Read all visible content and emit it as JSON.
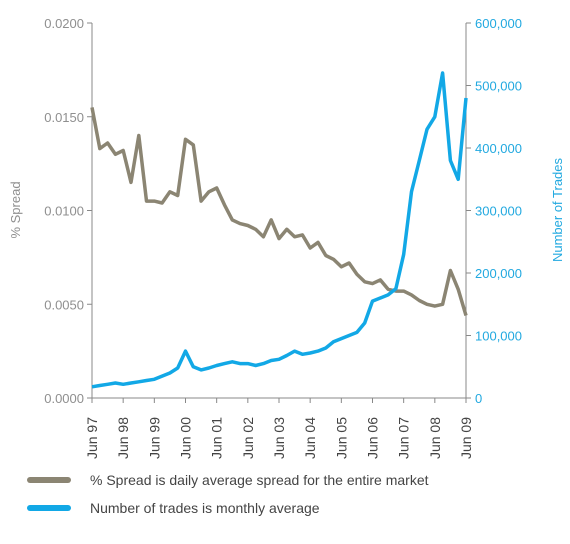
{
  "chart_data": {
    "type": "line",
    "categories": [
      "Jun 97",
      null,
      null,
      null,
      "Jun 98",
      null,
      null,
      null,
      "Jun 99",
      null,
      null,
      null,
      "Jun 00",
      null,
      null,
      null,
      "Jun 01",
      null,
      null,
      null,
      "Jun 02",
      null,
      null,
      null,
      "Jun 03",
      null,
      null,
      null,
      "Jun 04",
      null,
      null,
      null,
      "Jun 05",
      null,
      null,
      null,
      "Jun 06",
      null,
      null,
      null,
      "Jun 07",
      null,
      null,
      null,
      "Jun 08",
      null,
      null,
      null,
      "Jun 09"
    ],
    "series": [
      {
        "name": "% Spread is daily average spread for the entire market",
        "color": "#8b8573",
        "axis": "y",
        "values": [
          0.0155,
          0.0133,
          0.0136,
          0.013,
          0.0132,
          0.0115,
          0.014,
          0.0105,
          0.0105,
          0.0104,
          0.011,
          0.0108,
          0.0138,
          0.0135,
          0.0105,
          0.011,
          0.0112,
          0.0103,
          0.0095,
          0.0093,
          0.0092,
          0.009,
          0.0086,
          0.0095,
          0.0085,
          0.009,
          0.0086,
          0.0087,
          0.008,
          0.0083,
          0.0076,
          0.0074,
          0.007,
          0.0072,
          0.0066,
          0.0062,
          0.0061,
          0.0063,
          0.0058,
          0.0057,
          0.0057,
          0.0055,
          0.0052,
          0.005,
          0.0049,
          0.005,
          0.0068,
          0.0058,
          0.0044
        ]
      },
      {
        "name": "Number of trades is monthly average",
        "color": "#12a8e6",
        "axis": "y2",
        "values": [
          18000,
          20000,
          22000,
          24000,
          22000,
          24000,
          26000,
          28000,
          30000,
          35000,
          40000,
          48000,
          75000,
          50000,
          45000,
          48000,
          52000,
          55000,
          58000,
          55000,
          55000,
          52000,
          55000,
          60000,
          62000,
          68000,
          75000,
          70000,
          72000,
          75000,
          80000,
          90000,
          95000,
          100000,
          105000,
          120000,
          155000,
          160000,
          165000,
          175000,
          230000,
          330000,
          380000,
          430000,
          450000,
          520000,
          380000,
          350000,
          480000
        ]
      }
    ],
    "y_label": "% Spread",
    "y2_label": "Number of Trades",
    "ylim": [
      0,
      0.02
    ],
    "yticks": [
      {
        "value": 0,
        "label": "0.0000"
      },
      {
        "value": 0.005,
        "label": "0.0050"
      },
      {
        "value": 0.01,
        "label": "0.0100"
      },
      {
        "value": 0.015,
        "label": "0.0150"
      },
      {
        "value": 0.02,
        "label": "0.0200"
      }
    ],
    "y2lim": [
      0,
      600000
    ],
    "y2ticks": [
      0,
      {
        "value": 100000,
        "label": "100,000"
      },
      {
        "value": 200000,
        "label": "200,000"
      },
      {
        "value": 300000,
        "label": "300,000"
      },
      {
        "value": 400000,
        "label": "400,000"
      },
      {
        "value": 500000,
        "label": "500,000"
      },
      {
        "value": 600000,
        "label": "600,000"
      }
    ]
  }
}
